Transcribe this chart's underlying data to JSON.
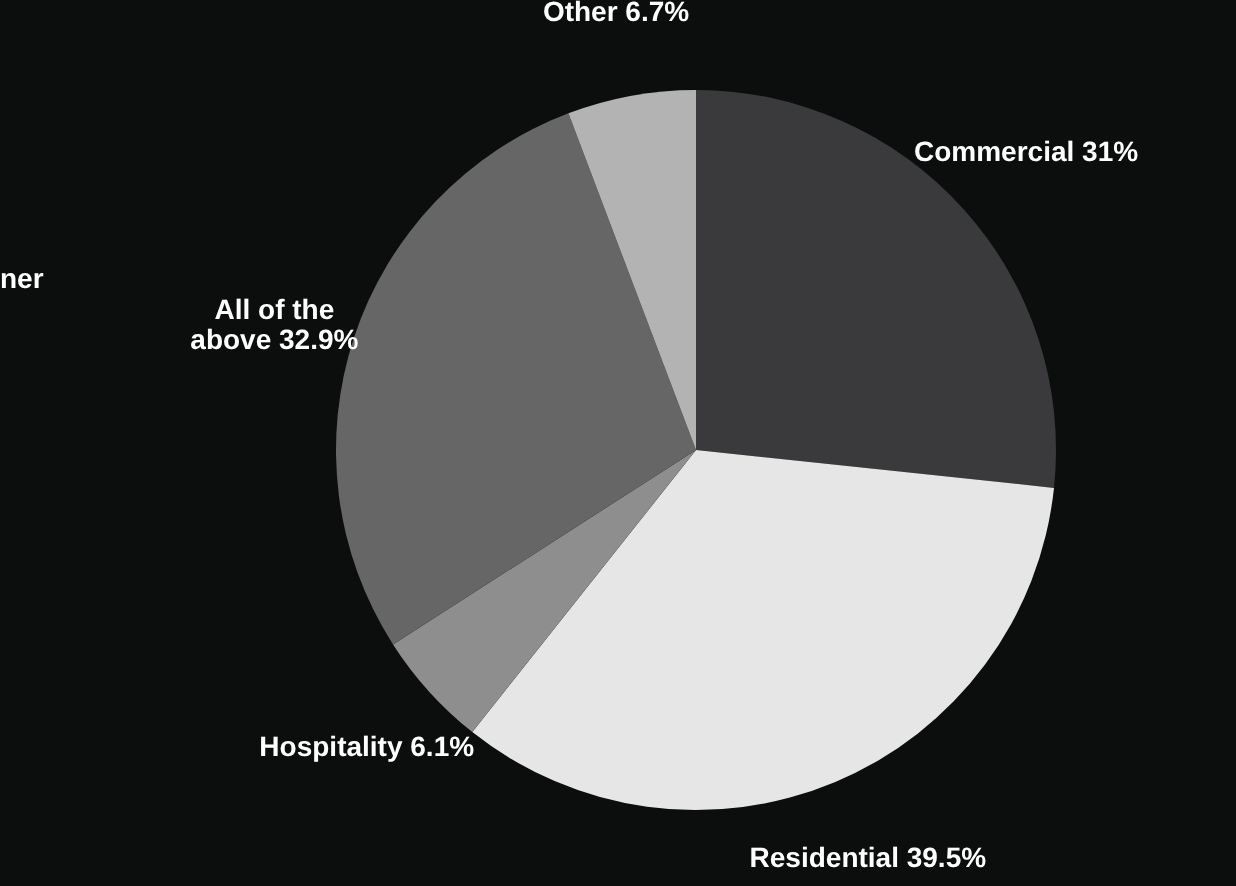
{
  "chart_data": {
    "type": "pie",
    "categories": [
      "Commercial",
      "Residential",
      "Hospitality",
      "All of the above",
      "Other"
    ],
    "values": [
      31,
      39.5,
      6.1,
      32.9,
      6.7
    ],
    "value_labels": [
      "31%",
      "39.5%",
      "6.1%",
      "32.9%",
      "6.7%"
    ],
    "colors": [
      "#3a3a3c",
      "#e6e6e6",
      "#8e8e8e",
      "#666666",
      "#b3b3b3"
    ],
    "annotations": [
      "ner"
    ]
  }
}
